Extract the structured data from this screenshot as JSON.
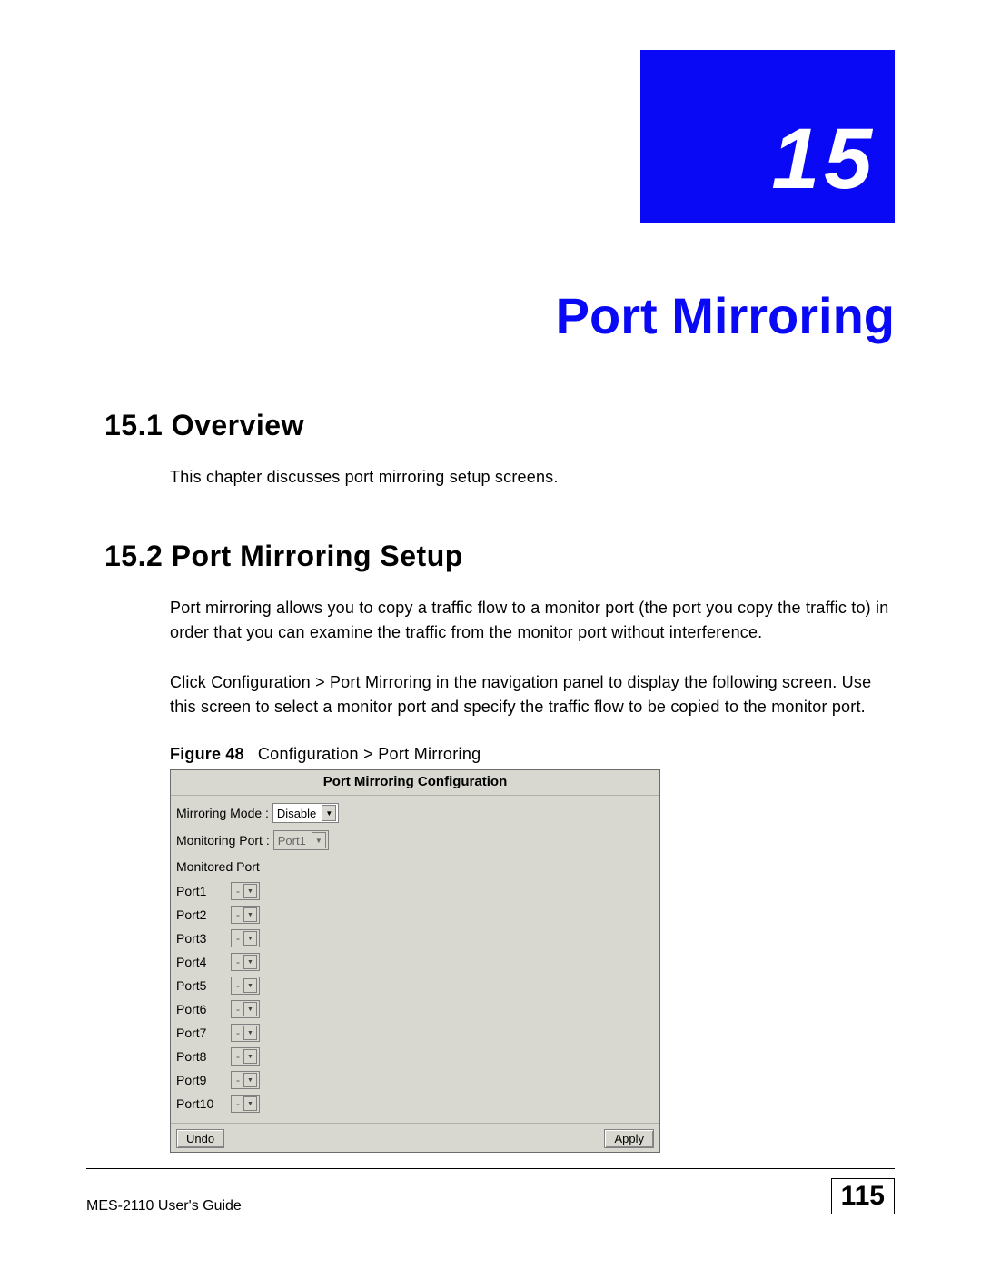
{
  "chapter": {
    "number": "15",
    "title": "Port Mirroring"
  },
  "section1": {
    "heading": "15.1  Overview",
    "text": "This chapter discusses port mirroring setup screens."
  },
  "section2": {
    "heading": "15.2  Port Mirroring Setup",
    "para1": "Port mirroring allows you to copy a traffic flow to a monitor port (the port you copy the traffic to) in order that you can examine the traffic from the monitor port without interference.",
    "para2": "Click Configuration > Port Mirroring in the navigation panel to display the following screen. Use this screen to select a monitor port and specify the traffic flow to be copied to the monitor port."
  },
  "figure": {
    "label": "Figure 48",
    "title": "Configuration > Port Mirroring"
  },
  "panel": {
    "header": "Port Mirroring Configuration",
    "mirroring_mode_label": "Mirroring Mode :",
    "mirroring_mode_value": "Disable",
    "monitoring_port_label": "Monitoring Port :",
    "monitoring_port_value": "Port1",
    "monitored_port_label": "Monitored Port",
    "ports": [
      {
        "name": "Port1",
        "value": "-"
      },
      {
        "name": "Port2",
        "value": "-"
      },
      {
        "name": "Port3",
        "value": "-"
      },
      {
        "name": "Port4",
        "value": "-"
      },
      {
        "name": "Port5",
        "value": "-"
      },
      {
        "name": "Port6",
        "value": "-"
      },
      {
        "name": "Port7",
        "value": "-"
      },
      {
        "name": "Port8",
        "value": "-"
      },
      {
        "name": "Port9",
        "value": "-"
      },
      {
        "name": "Port10",
        "value": "-"
      }
    ],
    "undo_label": "Undo",
    "apply_label": "Apply"
  },
  "footer": {
    "guide": "MES-2110 User's Guide",
    "page": "115"
  },
  "colors": {
    "accent_blue": "#0909f5",
    "panel_bg": "#d8d8d0",
    "border_gray": "#808080"
  }
}
